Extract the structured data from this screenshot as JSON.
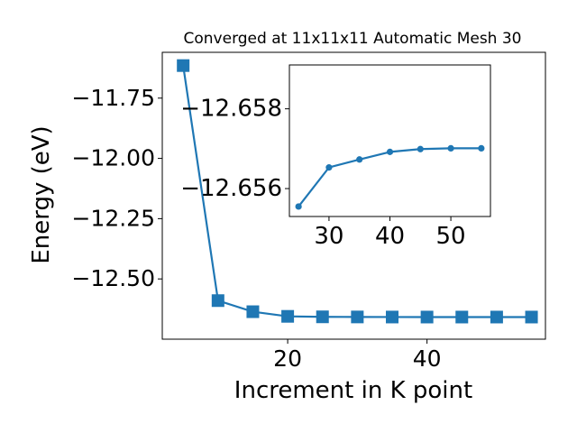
{
  "chart_data": [
    {
      "type": "line",
      "title": "Converged at 11x11x11 Automatic Mesh 30",
      "xlabel": "Increment in K point",
      "ylabel": "Energy (eV)",
      "xlim": [
        2,
        57
      ],
      "ylim": [
        -12.75,
        -11.56
      ],
      "xticks": [
        20,
        40
      ],
      "yticks": [
        -11.75,
        -12.0,
        -12.25,
        -12.5
      ],
      "ytick_labels": [
        "−11.75",
        "−12.00",
        "−12.25",
        "−12.50"
      ],
      "grid": false,
      "color": "#1f77b4",
      "marker": "square",
      "series": [
        {
          "x": [
            5,
            10,
            15,
            20,
            25,
            30,
            35,
            40,
            45,
            50,
            55
          ],
          "y": [
            -11.615,
            -12.59,
            -12.636,
            -12.6553,
            -12.6573,
            -12.6578,
            -12.6581,
            -12.6582,
            -12.6582,
            -12.6582,
            -12.6582
          ]
        }
      ]
    },
    {
      "type": "line",
      "title": "",
      "xlabel": "",
      "ylabel": "",
      "xlim": [
        23.5,
        56.5
      ],
      "ylim": [
        -12.6553,
        -12.6591
      ],
      "xticks": [
        30,
        40,
        50
      ],
      "yticks": [
        -12.658,
        -12.656
      ],
      "ytick_labels": [
        "−12.658",
        "−12.656"
      ],
      "grid": false,
      "color": "#1f77b4",
      "marker": "circle",
      "series": [
        {
          "x": [
            25,
            30,
            35,
            40,
            45,
            50,
            55
          ],
          "y": [
            -12.65555,
            -12.65653,
            -12.65673,
            -12.65692,
            -12.65699,
            -12.65701,
            -12.65701
          ]
        }
      ]
    }
  ]
}
